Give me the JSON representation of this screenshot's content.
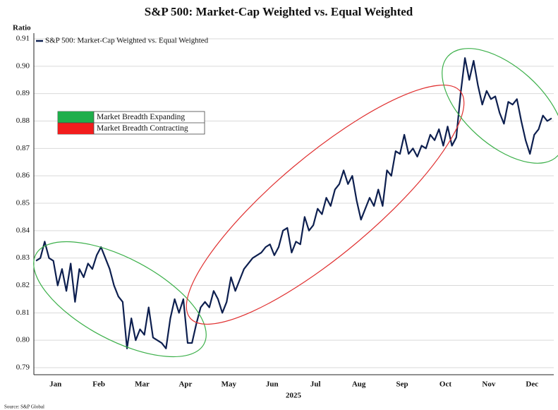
{
  "chart_data": {
    "type": "line",
    "title": "S&P 500: Market-Cap Weighted vs. Equal Weighted",
    "y_axis_label": "Ratio",
    "x_axis_label": "2025",
    "source": "Source: S&P Global",
    "annotations": [
      "Market Breadth Expanding",
      "Market Breadth Contracting"
    ],
    "categories": [
      null,
      null,
      null,
      null,
      null,
      "Jan",
      null,
      null,
      null,
      null,
      null,
      null,
      null,
      null,
      null,
      "Feb",
      null,
      null,
      null,
      null,
      null,
      null,
      null,
      null,
      null,
      "Mar",
      null,
      null,
      null,
      null,
      null,
      null,
      null,
      null,
      null,
      "Apr",
      null,
      null,
      null,
      null,
      null,
      null,
      null,
      null,
      null,
      "May",
      null,
      null,
      null,
      null,
      null,
      null,
      null,
      null,
      null,
      "Jun",
      null,
      null,
      null,
      null,
      null,
      null,
      null,
      null,
      null,
      "Jul",
      null,
      null,
      null,
      null,
      null,
      null,
      null,
      null,
      null,
      "Aug",
      null,
      null,
      null,
      null,
      null,
      null,
      null,
      null,
      null,
      "Sep",
      null,
      null,
      null,
      null,
      null,
      null,
      null,
      null,
      null,
      "Oct",
      null,
      null,
      null,
      null,
      null,
      null,
      null,
      null,
      null,
      "Nov",
      null,
      null,
      null,
      null,
      null,
      null,
      null,
      null,
      null,
      "Dec",
      null,
      null,
      null,
      null
    ],
    "series": [
      {
        "name": "S&P 500: Market-Cap Weighted vs. Equal Weighted",
        "color": "#0d1f4f",
        "values": [
          0.829,
          0.83,
          0.836,
          0.83,
          0.829,
          0.82,
          0.826,
          0.818,
          0.828,
          0.814,
          0.826,
          0.823,
          0.828,
          0.826,
          0.831,
          0.834,
          0.83,
          0.826,
          0.82,
          0.816,
          0.814,
          0.797,
          0.808,
          0.8,
          0.804,
          0.802,
          0.812,
          0.801,
          0.8,
          0.799,
          0.797,
          0.808,
          0.815,
          0.81,
          0.815,
          0.799,
          0.799,
          0.806,
          0.812,
          0.814,
          0.812,
          0.818,
          0.815,
          0.81,
          0.814,
          0.823,
          0.818,
          0.822,
          0.826,
          0.828,
          0.83,
          0.831,
          0.832,
          0.834,
          0.835,
          0.831,
          0.834,
          0.84,
          0.841,
          0.832,
          0.836,
          0.835,
          0.845,
          0.84,
          0.842,
          0.848,
          0.846,
          0.852,
          0.849,
          0.855,
          0.857,
          0.862,
          0.857,
          0.86,
          0.851,
          0.844,
          0.848,
          0.852,
          0.849,
          0.855,
          0.849,
          0.862,
          0.86,
          0.869,
          0.868,
          0.875,
          0.868,
          0.87,
          0.867,
          0.871,
          0.87,
          0.875,
          0.873,
          0.877,
          0.871,
          0.878,
          0.871,
          0.874,
          0.89,
          0.903,
          0.895,
          0.902,
          0.893,
          0.886,
          0.891,
          0.888,
          0.889,
          0.883,
          0.879,
          0.887,
          0.886,
          0.888,
          0.88,
          0.873,
          0.868,
          0.875,
          0.877,
          0.882,
          0.88,
          0.881
        ]
      }
    ],
    "ylim": [
      0.79,
      0.91
    ],
    "yticks": [
      0.79,
      {
        "value": 0.8,
        "label": "0.80"
      },
      0.81,
      0.82,
      0.83,
      0.84,
      0.85,
      0.86,
      0.87,
      0.88,
      0.89,
      {
        "value": 0.9,
        "label": "0.90"
      },
      0.91
    ],
    "grid": true,
    "legend": "top-left"
  }
}
